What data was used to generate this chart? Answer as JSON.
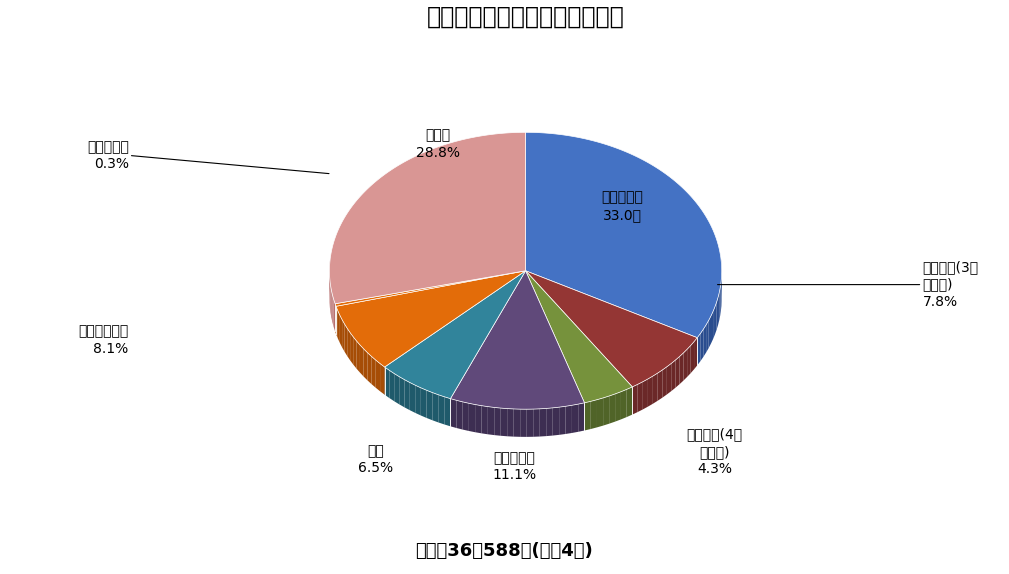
{
  "title": "侵入窃盗の発生場所別認知件数",
  "subtitle": "総数　36，588件(令和4年)",
  "labels": [
    "一戸建住宅",
    "共同住宅(3階\n建以下)",
    "共同住宅(4階\n建以上)",
    "一般事務所",
    "商店",
    "生活環境営業",
    "金融機関等",
    "その他"
  ],
  "pct_labels": [
    "33.0％",
    "7.8%",
    "4.3%",
    "11.1%",
    "6.5%",
    "8.1%",
    "0.3%",
    "28.8%"
  ],
  "values": [
    33.0,
    7.8,
    4.3,
    11.1,
    6.5,
    8.1,
    0.3,
    28.8
  ],
  "colors": [
    "#4472C4",
    "#943634",
    "#76923C",
    "#60497A",
    "#31849B",
    "#E36C09",
    "#E36C09",
    "#D99694"
  ],
  "shadow_colors": [
    "#2A4D8F",
    "#6B2828",
    "#506428",
    "#3D2E52",
    "#1F5A6B",
    "#A64D06",
    "#A64D06",
    "#B87070"
  ],
  "startangle": 90,
  "background_color": "#FFFFFF"
}
